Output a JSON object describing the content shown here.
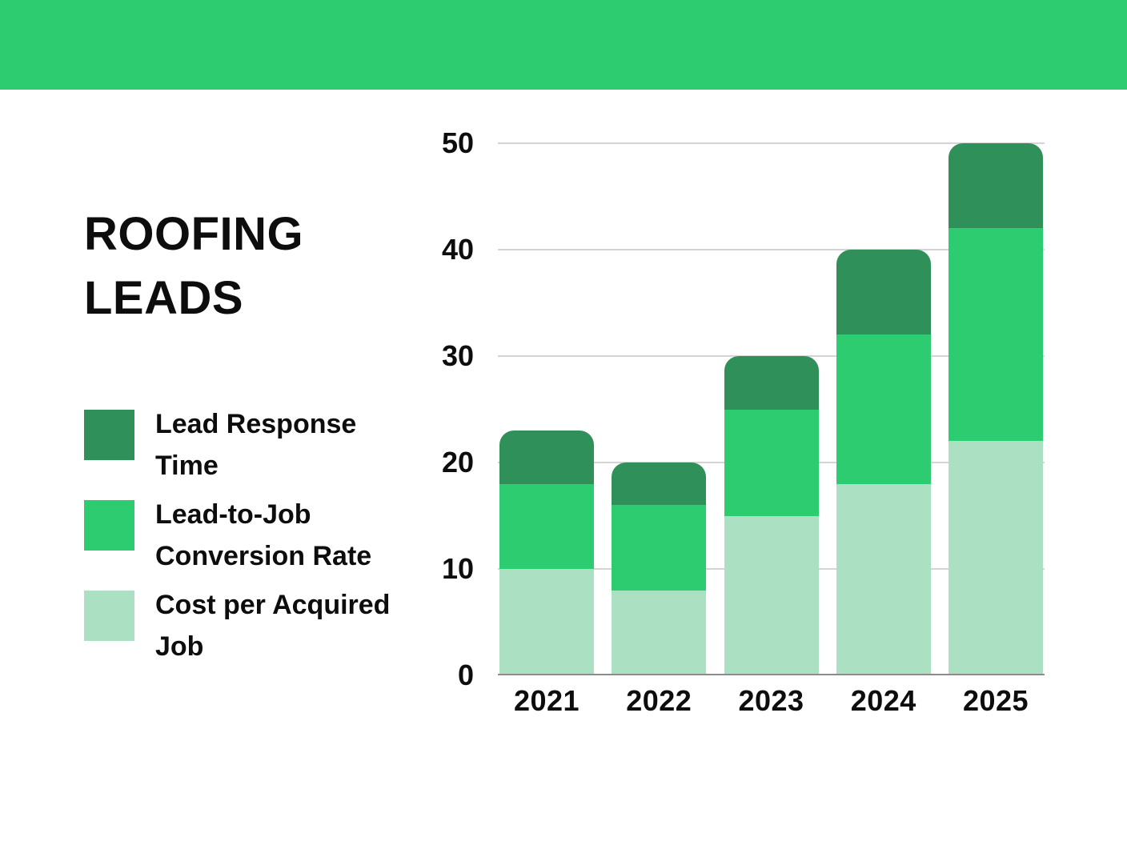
{
  "banner": {
    "color": "#2ecc71"
  },
  "title": "ROOFING LEADS",
  "legend": [
    {
      "label": "Lead Response Time",
      "color": "#2f9059",
      "icon": "dark-green-swatch"
    },
    {
      "label": "Lead-to-Job Conversion Rate",
      "color": "#2ecc71",
      "icon": "green-swatch"
    },
    {
      "label": "Cost per Acquired Job",
      "color": "#abe0c3",
      "icon": "light-green-swatch"
    }
  ],
  "chart_data": {
    "type": "bar",
    "stacked": true,
    "title": "",
    "xlabel": "",
    "ylabel": "",
    "categories": [
      "2021",
      "2022",
      "2023",
      "2024",
      "2025"
    ],
    "series": [
      {
        "name": "Cost per Acquired Job",
        "color": "#abe0c3",
        "values": [
          10,
          8,
          15,
          18,
          22
        ]
      },
      {
        "name": "Lead-to-Job Conversion Rate",
        "color": "#2ecc71",
        "values": [
          8,
          8,
          10,
          14,
          20
        ]
      },
      {
        "name": "Lead Response Time",
        "color": "#2f9059",
        "values": [
          5,
          4,
          5,
          8,
          8
        ]
      }
    ],
    "totals": [
      23,
      20,
      30,
      40,
      50
    ],
    "ylim": [
      0,
      50
    ],
    "y_ticks": [
      0,
      10,
      20,
      30,
      40,
      50
    ],
    "grid": true,
    "gridline_color": "#d4d4d4",
    "baseline_color": "#8c8c8c",
    "legend_position": "left",
    "bar_corner_radius_px": 18
  }
}
